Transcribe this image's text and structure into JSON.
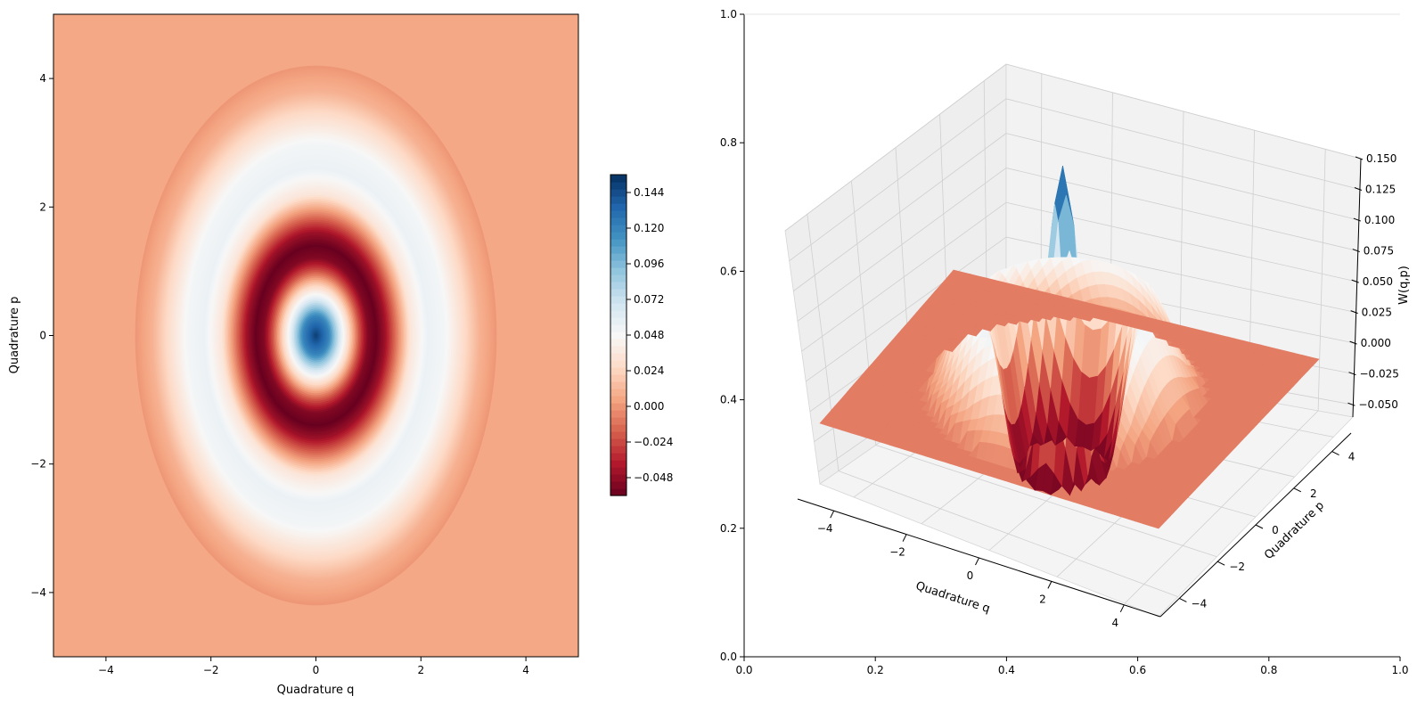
{
  "chart_data": [
    {
      "type": "heatmap",
      "subtype": "filled-contour",
      "title": "",
      "xlabel": "Quadrature q",
      "ylabel": "Quadrature p",
      "xlim": [
        -5,
        5
      ],
      "ylim": [
        -5,
        5
      ],
      "xticks": [
        -4,
        -2,
        0,
        2,
        4
      ],
      "yticks": [
        -4,
        -2,
        0,
        2,
        4
      ],
      "xtick_labels": [
        "−4",
        "−2",
        "0",
        "2",
        "4"
      ],
      "ytick_labels": [
        "−4",
        "−2",
        "0",
        "2",
        "4"
      ],
      "colormap": "RdBu",
      "ellipse_ratio_q_over_p": 0.82,
      "radial_profile": {
        "r": [
          0,
          0.3,
          0.6,
          0.8,
          1.0,
          1.2,
          1.4,
          1.6,
          1.9,
          2.2,
          2.6,
          3.0,
          3.4,
          3.8,
          4.2
        ],
        "W": [
          0.15,
          0.12,
          0.055,
          0.02,
          -0.02,
          -0.052,
          -0.06,
          -0.045,
          -0.005,
          0.035,
          0.055,
          0.05,
          0.03,
          0.01,
          0.0
        ]
      },
      "background_value": -0.008,
      "colorbar": {
        "min": -0.06,
        "max": 0.156,
        "ticks": [
          0.144,
          0.12,
          0.096,
          0.072,
          0.048,
          0.024,
          0.0,
          -0.024,
          -0.048
        ],
        "tick_labels": [
          "0.144",
          "0.120",
          "0.096",
          "0.072",
          "0.048",
          "0.024",
          "0.000",
          "−0.024",
          "−0.048"
        ]
      }
    },
    {
      "type": "surface3d",
      "title": "",
      "xlabel": "Quadrature q",
      "ylabel": "Quadrature p",
      "zlabel": "W(q,p)",
      "xlim": [
        -5,
        5
      ],
      "ylim": [
        -5,
        5
      ],
      "zlim": [
        -0.06,
        0.15
      ],
      "xticks": [
        -4,
        -2,
        0,
        2,
        4
      ],
      "yticks": [
        -4,
        -2,
        0,
        2,
        4
      ],
      "zticks": [
        0.15,
        0.125,
        0.1,
        0.075,
        0.05,
        0.025,
        0.0,
        -0.025,
        -0.05
      ],
      "xtick_labels": [
        "−4",
        "−2",
        "0",
        "2",
        "4"
      ],
      "ytick_labels": [
        "−4",
        "−2",
        "0",
        "2",
        "4"
      ],
      "ztick_labels": [
        "0.150",
        "0.125",
        "0.100",
        "0.075",
        "0.050",
        "0.025",
        "0.000",
        "−0.025",
        "−0.050"
      ],
      "peak_value": 0.15,
      "frame_axes": {
        "xlim": [
          0,
          1
        ],
        "ylim": [
          0,
          1
        ],
        "xticks": [
          0.0,
          0.2,
          0.4,
          0.6,
          0.8,
          1.0
        ],
        "yticks": [
          0.0,
          0.2,
          0.4,
          0.6,
          0.8,
          1.0
        ],
        "xtick_labels": [
          "0.0",
          "0.2",
          "0.4",
          "0.6",
          "0.8",
          "1.0"
        ],
        "ytick_labels": [
          "0.0",
          "0.2",
          "0.4",
          "0.6",
          "0.8",
          "1.0"
        ]
      }
    }
  ]
}
